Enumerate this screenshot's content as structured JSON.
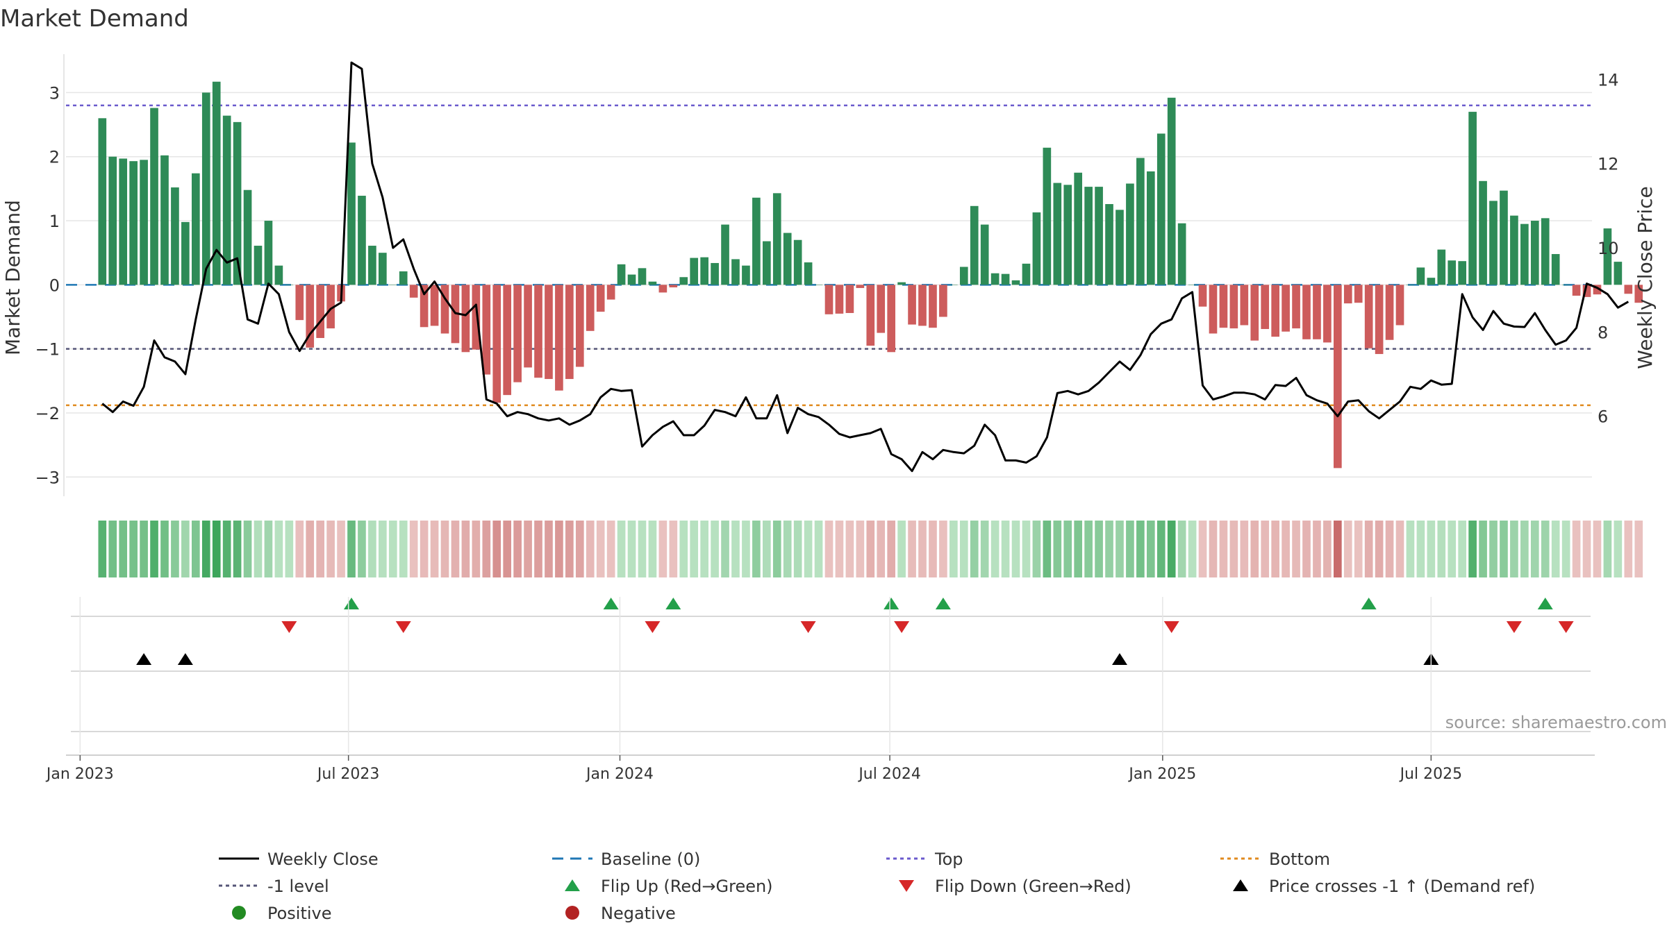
{
  "chart_data": {
    "type": "bar+line",
    "title": "Market Demand",
    "ylabel_left": "Market Demand",
    "ylabel_right": "Weekly Close Price",
    "ylim_left": [
      -3.3,
      3.6
    ],
    "ylim_right": [
      4.1,
      14.6
    ],
    "left_ticks": [
      "3",
      "2",
      "1",
      "0",
      "−1",
      "−2",
      "−3"
    ],
    "left_tick_values": [
      3,
      2,
      1,
      0,
      -1,
      -2,
      -3
    ],
    "right_ticks": [
      "14",
      "12",
      "10",
      "8",
      "6"
    ],
    "right_tick_values": [
      14,
      12,
      10,
      8,
      6
    ],
    "x_start_week": -3.5,
    "x_end_week": 143.5,
    "date_ticks": [
      {
        "label": "Jan 2023",
        "week": -2.14
      },
      {
        "label": "Jul 2023",
        "week": 23.71
      },
      {
        "label": "Jan 2024",
        "week": 49.86
      },
      {
        "label": "Jul 2024",
        "week": 75.86
      },
      {
        "label": "Jan 2025",
        "week": 102.14
      },
      {
        "label": "Jul 2025",
        "week": 128.0
      }
    ],
    "reference_lines": {
      "top": 2.8,
      "bottom": -1.88,
      "minus_one": -1,
      "baseline": 0
    },
    "demand": [
      2.6,
      2.0,
      1.97,
      1.93,
      1.95,
      2.76,
      2.02,
      1.52,
      0.98,
      1.74,
      3.0,
      3.17,
      2.64,
      2.54,
      1.48,
      0.61,
      1.0,
      0.3,
      0,
      -0.55,
      -0.98,
      -0.83,
      -0.68,
      -0.26,
      2.22,
      1.39,
      0.61,
      0.5,
      0,
      0.21,
      -0.2,
      -0.66,
      -0.64,
      -0.76,
      -0.91,
      -1.05,
      -1.01,
      -1.4,
      -1.84,
      -1.72,
      -1.52,
      -1.29,
      -1.45,
      -1.47,
      -1.65,
      -1.47,
      -1.28,
      -0.72,
      -0.42,
      -0.23,
      0.32,
      0.16,
      0.26,
      0.05,
      -0.12,
      -0.04,
      0.12,
      0.42,
      0.43,
      0.34,
      0.94,
      0.4,
      0.3,
      1.36,
      0.68,
      1.43,
      0.81,
      0.7,
      0.35,
      0,
      -0.46,
      -0.45,
      -0.44,
      -0.05,
      -0.95,
      -0.75,
      -1.05,
      0.04,
      -0.62,
      -0.64,
      -0.67,
      -0.5,
      0,
      0.28,
      1.23,
      0.94,
      0.18,
      0.17,
      0.07,
      0.33,
      1.13,
      2.14,
      1.59,
      1.56,
      1.75,
      1.53,
      1.53,
      1.26,
      1.17,
      1.58,
      1.98,
      1.77,
      2.36,
      2.92,
      0.96,
      0,
      -0.34,
      -0.76,
      -0.67,
      -0.68,
      -0.63,
      -0.87,
      -0.69,
      -0.81,
      -0.73,
      -0.68,
      -0.85,
      -0.85,
      -0.9,
      -2.86,
      -0.29,
      -0.28,
      -0.99,
      -1.08,
      -0.86,
      -0.63,
      0,
      0.27,
      0.11,
      0.55,
      0.38,
      0.37,
      2.7,
      1.62,
      1.31,
      1.47,
      1.08,
      0.95,
      1.0,
      1.04,
      0.48,
      0,
      -0.17,
      -0.19,
      -0.15,
      0.88,
      0.36,
      -0.14,
      -0.28
    ],
    "price": [
      6.3,
      6.1,
      6.35,
      6.25,
      6.7,
      7.8,
      7.4,
      7.3,
      7.0,
      8.3,
      9.5,
      9.95,
      9.65,
      9.75,
      8.3,
      8.2,
      9.15,
      8.9,
      8.0,
      7.55,
      7.95,
      8.25,
      8.55,
      8.7,
      14.4,
      14.25,
      12.0,
      11.2,
      10.0,
      10.2,
      9.5,
      8.9,
      9.2,
      8.8,
      8.45,
      8.4,
      8.65,
      6.4,
      6.3,
      6.0,
      6.1,
      6.05,
      5.95,
      5.9,
      5.95,
      5.8,
      5.9,
      6.05,
      6.45,
      6.65,
      6.6,
      6.62,
      5.28,
      5.55,
      5.75,
      5.88,
      5.55,
      5.55,
      5.78,
      6.15,
      6.1,
      6.0,
      6.45,
      5.95,
      5.95,
      6.5,
      5.6,
      6.2,
      6.05,
      5.98,
      5.8,
      5.58,
      5.5,
      5.55,
      5.6,
      5.7,
      5.1,
      4.98,
      4.7,
      5.15,
      4.98,
      5.2,
      5.15,
      5.12,
      5.3,
      5.8,
      5.55,
      4.95,
      4.95,
      4.9,
      5.05,
      5.5,
      6.55,
      6.6,
      6.52,
      6.6,
      6.8,
      7.05,
      7.3,
      7.1,
      7.45,
      7.95,
      8.2,
      8.3,
      8.8,
      8.95,
      6.73,
      6.4,
      6.47,
      6.56,
      6.56,
      6.52,
      6.4,
      6.74,
      6.72,
      6.91,
      6.5,
      6.38,
      6.3,
      6.0,
      6.35,
      6.38,
      6.12,
      5.95,
      6.15,
      6.35,
      6.7,
      6.65,
      6.85,
      6.75,
      6.77,
      8.9,
      8.35,
      8.05,
      8.5,
      8.2,
      8.13,
      8.12,
      8.45,
      8.05,
      7.7,
      7.8,
      8.1,
      9.15,
      9.05,
      8.9,
      8.58,
      8.72
    ],
    "flip_up": [
      24,
      49,
      55,
      76,
      81,
      122,
      139
    ],
    "flip_down": [
      18,
      29,
      53,
      68,
      77,
      103,
      136,
      141
    ],
    "price_cross": [
      4,
      8,
      98,
      128
    ],
    "source": "source: sharemaestro.com",
    "legend": [
      {
        "label": "Weekly Close",
        "marker": "solid-line",
        "color": "#000000"
      },
      {
        "label": "Baseline (0)",
        "marker": "dash-line",
        "color": "#1f77b4"
      },
      {
        "label": "Top",
        "marker": "dotted-line",
        "color": "#6a5acd"
      },
      {
        "label": "Bottom",
        "marker": "dotted-line",
        "color": "#e08a1e"
      },
      {
        "label": "-1 level",
        "marker": "dotted-line",
        "color": "#555577"
      },
      {
        "label": "Flip Up (Red→Green)",
        "marker": "triangle-up",
        "color": "#23a04a"
      },
      {
        "label": "Flip Down (Green→Red)",
        "marker": "triangle-down",
        "color": "#d62728"
      },
      {
        "label": "Price crosses -1 ↑ (Demand ref)",
        "marker": "triangle-up",
        "color": "#000000"
      },
      {
        "label": "Positive",
        "marker": "circle",
        "color": "#228b22"
      },
      {
        "label": "Negative",
        "marker": "circle",
        "color": "#b22222"
      }
    ],
    "colors": {
      "positive_bar": "#2e8b57",
      "negative_bar": "#cd5c5c",
      "price_line": "#000000",
      "top_line": "#6a5acd",
      "bottom_line": "#e08a1e",
      "minus_one_line": "#555577",
      "baseline": "#1f77b4",
      "grid": "#e6e6e6",
      "text": "#333333"
    }
  }
}
